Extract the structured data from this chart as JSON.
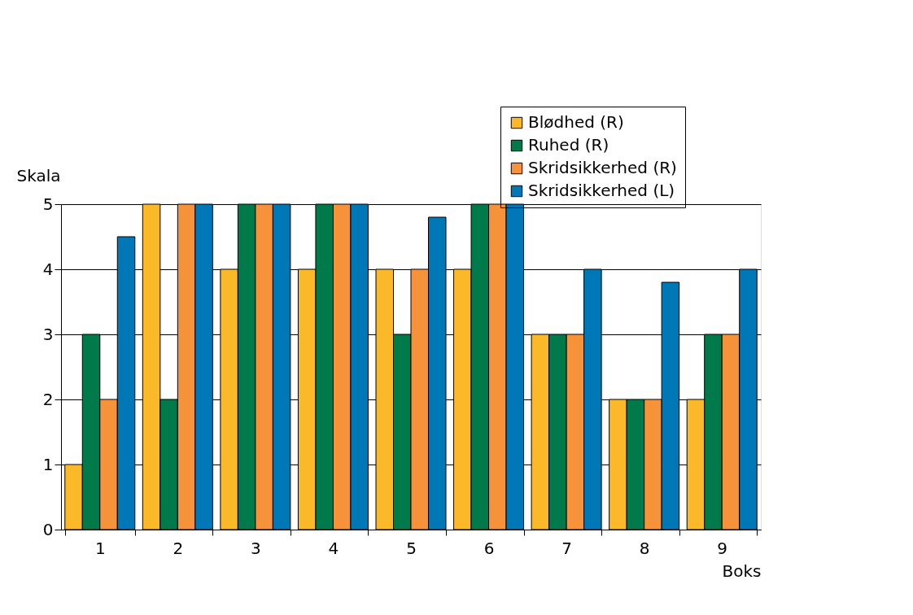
{
  "chart_data": {
    "type": "bar",
    "xlabel": "Boks",
    "ylabel": "Skala",
    "categories": [
      "1",
      "2",
      "3",
      "4",
      "5",
      "6",
      "7",
      "8",
      "9"
    ],
    "series": [
      {
        "name": "Blødhed (R)",
        "color": "#fbb829",
        "values": [
          1,
          5,
          4,
          4,
          4,
          4,
          3,
          2,
          2
        ]
      },
      {
        "name": "Ruhed (R)",
        "color": "#007a4a",
        "values": [
          3,
          2,
          5,
          5,
          3,
          5,
          3,
          2,
          3
        ]
      },
      {
        "name": "Skridsikkerhed (R)",
        "color": "#f5923a",
        "values": [
          2,
          5,
          5,
          5,
          4,
          5,
          3,
          2,
          3
        ]
      },
      {
        "name": "Skridsikkerhed (L)",
        "color": "#0077b6",
        "values": [
          4.5,
          5,
          5,
          5,
          4.8,
          5,
          4,
          3.8,
          4
        ]
      }
    ],
    "ylim": [
      0,
      5
    ],
    "yticks": [
      0,
      1,
      2,
      3,
      4,
      5
    ],
    "grid": "y",
    "legend": "top right"
  }
}
